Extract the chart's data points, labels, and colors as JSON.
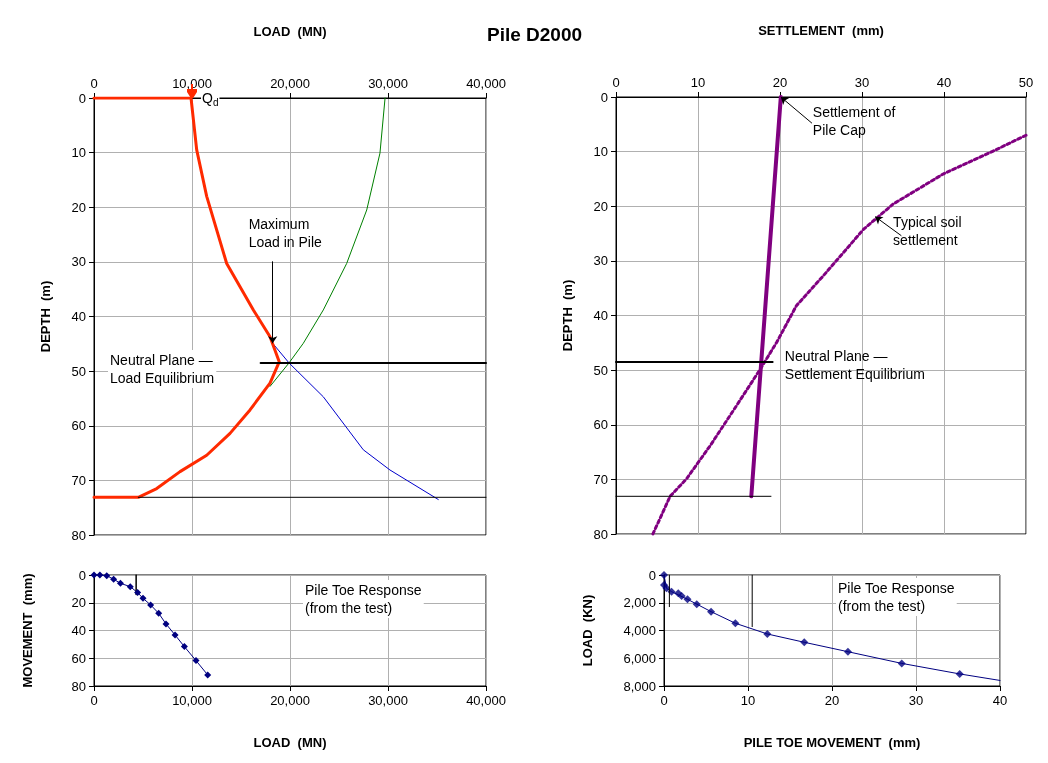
{
  "chart_data": [
    {
      "type": "line",
      "title": "Pile D2000",
      "xlabel": "LOAD  (MN)",
      "ylabel": "DEPTH  (m)",
      "xlim": [
        0,
        40000
      ],
      "xticks": [
        0,
        {
          "value": 10000,
          "label": "10,000"
        },
        {
          "value": 20000,
          "label": "20,000"
        },
        {
          "value": 30000,
          "label": "30,000"
        },
        {
          "value": 40000,
          "label": "40,000"
        }
      ],
      "ylim": [
        80,
        0
      ],
      "yticks": [
        0,
        10,
        20,
        30,
        40,
        50,
        60,
        70,
        80
      ],
      "grid": true,
      "series": [
        {
          "color": "#008000",
          "marker": "none",
          "line_style": "solid",
          "x": [
            29700,
            29180,
            27830,
            25780,
            23400,
            21360,
            19900,
            17960
          ],
          "values": [
            0,
            10.1,
            20.5,
            30.3,
            38.8,
            44.9,
            48.5,
            52.8
          ]
        },
        {
          "color": "#0000cc",
          "marker": "none",
          "line_style": "solid",
          "x": [
            18230,
            19900,
            23400,
            27480,
            30200,
            35130
          ],
          "values": [
            44.9,
            48.5,
            54.7,
            64.4,
            68.1,
            73.5
          ]
        },
        {
          "color": "#ff2a00",
          "marker": "none",
          "line_style": "solid",
          "x": [
            0,
            9900,
            10480,
            11500,
            13540,
            16260,
            17960,
            18900,
            17960,
            15920,
            13880,
            11500,
            8780,
            6400,
            4520,
            0
          ],
          "values": [
            0,
            0,
            9.5,
            18,
            30.3,
            38.8,
            43.7,
            48.3,
            52.2,
            57.1,
            61.4,
            65.4,
            68.4,
            71.5,
            73.1,
            73.1
          ]
        },
        {
          "color": "#000000",
          "marker": "none",
          "line_style": "solid",
          "x": [
            17000,
            40000
          ],
          "values": [
            48.5,
            48.5
          ]
        },
        {
          "color": "#000000",
          "marker": "none",
          "line_style": "solid",
          "x": [
            4520,
            40000
          ],
          "values": [
            73.1,
            73.1
          ]
        }
      ],
      "annotations": [
        {
          "text": "Q$_{d}$",
          "x": 10000,
          "y": 0
        },
        {
          "text": "Maximum\nLoad in Pile",
          "x": 18230,
          "y": 44.9
        },
        "Neutral Plane —\nLoad Equilibrium"
      ]
    },
    {
      "type": "line",
      "xlabel": "SETTLEMENT  (mm)",
      "ylabel": "DEPTH  (m)",
      "xlim": [
        0,
        50
      ],
      "xticks": [
        0,
        10,
        20,
        30,
        40,
        50
      ],
      "ylim": [
        80,
        0
      ],
      "yticks": [
        0,
        10,
        20,
        30,
        40,
        50,
        60,
        70,
        80
      ],
      "grid": true,
      "series": [
        {
          "color": "#800080",
          "marker": "none",
          "line_style": "dotted",
          "x": [
            50,
            46,
            39.9,
            33.8,
            30.2,
            25.3,
            22,
            19.6,
            17.6,
            14.7,
            11.5,
            8.6,
            6.6,
            4.5
          ],
          "values": [
            7,
            9.9,
            14.1,
            19.6,
            24.2,
            32.7,
            38.2,
            44.9,
            49.8,
            56.5,
            63.8,
            69.9,
            73.1,
            80
          ]
        },
        {
          "color": "#800080",
          "marker": "none",
          "line_style": "solid",
          "x": [
            20.1,
            16.5
          ],
          "values": [
            0,
            73.1
          ]
        },
        {
          "color": "#000000",
          "marker": "none",
          "line_style": "solid",
          "x": [
            0,
            19.1
          ],
          "values": [
            48.5,
            48.5
          ]
        },
        {
          "color": "#000000",
          "marker": "none",
          "line_style": "solid",
          "x": [
            0,
            18.9
          ],
          "values": [
            73.1,
            73.1
          ]
        }
      ],
      "annotations": [
        {
          "text": "Settlement of\nPile Cap",
          "x": 20.1,
          "y": 0
        },
        {
          "text": "Typical soil\nsettlement",
          "x": 31.6,
          "y": 21.9
        },
        {
          "text": "Neutral Plane —\nSettlement Equilibrium",
          "x": 19,
          "y": 48.5
        }
      ]
    },
    {
      "type": "line",
      "xlabel": "LOAD  (MN)",
      "ylabel": "MOVEMENT  (mm)",
      "xlim": [
        0,
        40000
      ],
      "xticks": [
        0,
        {
          "value": 10000,
          "label": "10,000"
        },
        {
          "value": 20000,
          "label": "20,000"
        },
        {
          "value": 30000,
          "label": "30,000"
        },
        {
          "value": 40000,
          "label": "40,000"
        }
      ],
      "ylim": [
        80,
        0
      ],
      "yticks": [
        0,
        20,
        40,
        60,
        80
      ],
      "grid": true,
      "series": [
        {
          "color": "#000080",
          "marker": "diamond",
          "line_style": "solid",
          "x": [
            0,
            600,
            1300,
            2000,
            2700,
            3700,
            4450,
            5000,
            5780,
            6600,
            7350,
            8270,
            9220,
            10410,
            11600
          ],
          "values": [
            0,
            0,
            0.5,
            3,
            6,
            8.4,
            12.7,
            16.8,
            21.6,
            27.6,
            35.3,
            43.2,
            51.6,
            61.7,
            72
          ]
        },
        {
          "color": "#000000",
          "marker": "none",
          "line_style": "solid",
          "x": [
            4300,
            4300
          ],
          "values": [
            0,
            14
          ]
        }
      ],
      "annotations": [
        "Pile Toe Response\n(from the test)"
      ]
    },
    {
      "type": "line",
      "xlabel": "PILE TOE MOVEMENT  (mm)",
      "ylabel": "LOAD  (KN)",
      "xlim": [
        0,
        40
      ],
      "xticks": [
        0,
        10,
        20,
        30,
        40
      ],
      "ylim": [
        8000,
        0
      ],
      "yticks": [
        0,
        {
          "value": 2000,
          "label": "2,000"
        },
        {
          "value": 4000,
          "label": "4,000"
        },
        {
          "value": 6000,
          "label": "6,000"
        },
        {
          "value": 8000,
          "label": "8,000"
        }
      ],
      "grid": true,
      "series": [
        {
          "color": "#000080",
          "marker": "none",
          "line_style": "solid",
          "x": [
            0,
            0.3,
            0.9,
            2.8,
            5.6,
            8.5,
            12.3,
            16.7,
            21.9,
            28.3,
            35.2,
            40
          ],
          "values": [
            0,
            960,
            1200,
            1750,
            2640,
            3480,
            4250,
            4850,
            5530,
            6370,
            7130,
            7600
          ]
        },
        {
          "type": "scatter",
          "color": "#000080",
          "marker": "diamond",
          "x": [
            0,
            0,
            0.3,
            0.9,
            1.7,
            2.1,
            2.8,
            3.9,
            5.6,
            8.5,
            12.3,
            16.7,
            21.9,
            28.3,
            35.2
          ],
          "values": [
            0,
            720,
            960,
            1200,
            1320,
            1510,
            1750,
            2110,
            2640,
            3480,
            4250,
            4850,
            5530,
            6370,
            7130
          ]
        },
        {
          "color": "#000000",
          "marker": "none",
          "line_style": "solid",
          "x": [
            0.64,
            0.64
          ],
          "values": [
            0,
            2280
          ]
        },
        {
          "color": "#000000",
          "marker": "none",
          "line_style": "solid",
          "x": [
            10.5,
            10.5
          ],
          "values": [
            0,
            3720
          ]
        }
      ],
      "annotations": [
        "Pile Toe Response\n(from the test)"
      ]
    }
  ]
}
